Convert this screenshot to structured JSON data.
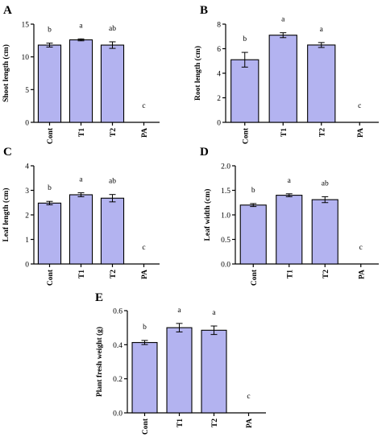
{
  "colors": {
    "bar_fill": "#b3b3f0",
    "bar_stroke": "#000000",
    "axis": "#000000"
  },
  "chart_data": [
    {
      "type": "bar",
      "panel": "A",
      "categories": [
        "Cont",
        "T1",
        "T2",
        "PA"
      ],
      "values": [
        11.8,
        12.6,
        11.8,
        0
      ],
      "errors": [
        0.3,
        0.15,
        0.5,
        0
      ],
      "significance": [
        "b",
        "a",
        "ab",
        "c"
      ],
      "ylabel": "Shoot length (cm)",
      "ylim": [
        0,
        15
      ],
      "yticks": [
        "0",
        "5",
        "10",
        "15"
      ]
    },
    {
      "type": "bar",
      "panel": "B",
      "categories": [
        "Cont",
        "T1",
        "T2",
        "PA"
      ],
      "values": [
        5.1,
        7.1,
        6.3,
        0
      ],
      "errors": [
        0.6,
        0.2,
        0.2,
        0
      ],
      "significance": [
        "b",
        "a",
        "a",
        "c"
      ],
      "ylabel": "Root length (cm)",
      "ylim": [
        0,
        8
      ],
      "yticks": [
        "0",
        "2",
        "4",
        "6",
        "8"
      ]
    },
    {
      "type": "bar",
      "panel": "C",
      "categories": [
        "Cont",
        "T1",
        "T2",
        "PA"
      ],
      "values": [
        2.48,
        2.82,
        2.68,
        0
      ],
      "errors": [
        0.07,
        0.08,
        0.15,
        0
      ],
      "significance": [
        "b",
        "a",
        "ab",
        "c"
      ],
      "ylabel": "Leaf length (cm)",
      "ylim": [
        0,
        4
      ],
      "yticks": [
        "0",
        "1",
        "2",
        "3",
        "4"
      ]
    },
    {
      "type": "bar",
      "panel": "D",
      "categories": [
        "Cont",
        "T1",
        "T2",
        "PA"
      ],
      "values": [
        1.2,
        1.4,
        1.31,
        0
      ],
      "errors": [
        0.03,
        0.03,
        0.06,
        0
      ],
      "significance": [
        "b",
        "a",
        "ab",
        "c"
      ],
      "ylabel": "Leaf width (cm)",
      "ylim": [
        0,
        2.0
      ],
      "yticks": [
        "0.0",
        "0.5",
        "1.0",
        "1.5",
        "2.0"
      ]
    },
    {
      "type": "bar",
      "panel": "E",
      "categories": [
        "Cont",
        "T1",
        "T2",
        "PA"
      ],
      "values": [
        0.413,
        0.5,
        0.485,
        0
      ],
      "errors": [
        0.012,
        0.025,
        0.025,
        0
      ],
      "significance": [
        "b",
        "a",
        "a",
        "c"
      ],
      "ylabel": "Plant fresh weight (g)",
      "ylim": [
        0,
        0.6
      ],
      "yticks": [
        "0.0",
        "0.2",
        "0.4",
        "0.6"
      ]
    }
  ]
}
